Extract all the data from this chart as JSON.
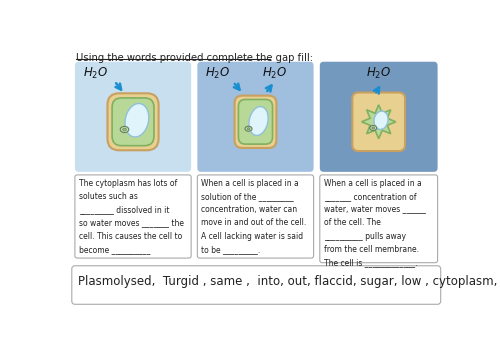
{
  "title": "Using the words provided complete the gap fill:",
  "bg_color": "#ffffff",
  "cell1_bg": "#c8dff0",
  "cell2_bg": "#a0bede",
  "cell3_bg": "#7499be",
  "box_text1": "The cytoplasm has lots of\nsolutes such as\n_________ dissolved in it\nso water moves _______ the\ncell. This causes the cell to\nbecome __________",
  "box_text2": "When a cell is placed in a\nsolution of the _________\nconcentration, water can\nmove in and out of the cell.\nA cell lacking water is said\nto be _________.",
  "box_text3": "When a cell is placed in a\n_______ concentration of\nwater, water moves ______\nof the cell. The\n__________ pulls away\nfrom the cell membrane.\nThe cell is _____________.",
  "word_bank": "Plasmolysed,  Turgid , same ,  into, out, flaccid, sugar, low , cytoplasm,",
  "h2o_label": "H₂O"
}
